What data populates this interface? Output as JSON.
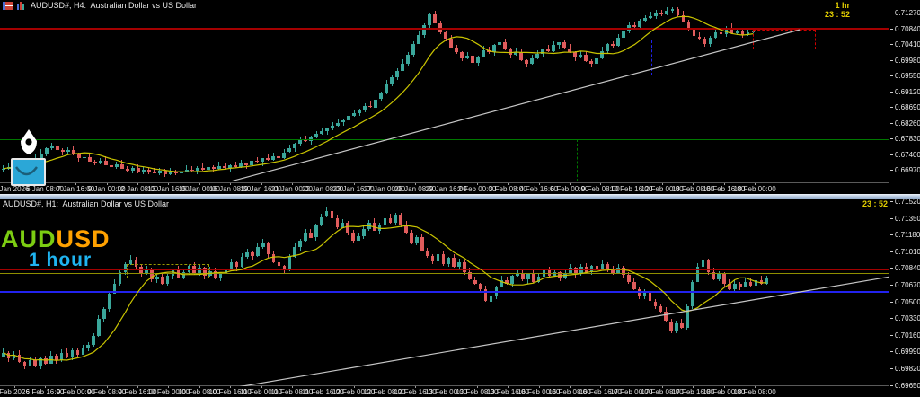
{
  "app": {
    "symbol": "AUDUSD#",
    "splitter_name": "panel splitter"
  },
  "chart_data": [
    {
      "id": "h4",
      "type": "candlestick",
      "title": "AUDUSD#, H4:  Australian Dollar vs US Dollar",
      "clock_label": "1 hr",
      "clock_time": "23 : 52",
      "timeframe": "H4",
      "y_range": {
        "top": 0.71614,
        "bottom": 0.66602
      },
      "price_ticks": [
        {
          "label": "0.71270",
          "value": 0.7127
        },
        {
          "label": "0.70840",
          "value": 0.7084
        },
        {
          "label": "0.70410",
          "value": 0.7041
        },
        {
          "label": "0.69980",
          "value": 0.6998
        },
        {
          "label": "0.69550",
          "value": 0.6955
        },
        {
          "label": "0.69120",
          "value": 0.6912
        },
        {
          "label": "0.68690",
          "value": 0.6869
        },
        {
          "label": "0.68260",
          "value": 0.6826
        },
        {
          "label": "0.67830",
          "value": 0.6783
        },
        {
          "label": "0.67400",
          "value": 0.674
        },
        {
          "label": "0.66970",
          "value": 0.6697
        }
      ],
      "time_ticks": [
        "Jan 2026",
        "6 Jan 08:00",
        "7 Jan 16:00",
        "9 Jan 00:00",
        "12 Jan 08:00",
        "13 Jan 16:00",
        "15 Jan 00:00",
        "16 Jan 08:00",
        "19 Jan 16:00",
        "21 Jan 00:00",
        "22 Jan 08:00",
        "23 Jan 16:00",
        "27 Jan 00:00",
        "28 Jan 08:00",
        "29 Jan 16:00",
        "2 Feb 00:00",
        "3 Feb 08:00",
        "4 Feb 16:00",
        "6 Feb 00:00",
        "9 Feb 08:00",
        "10 Feb 16:00",
        "12 Feb 00:00",
        "13 Feb 08:00",
        "16 Feb 16:00",
        "18 Feb 00:00"
      ],
      "closes": [
        0.67,
        0.6705,
        0.6698,
        0.6712,
        0.672,
        0.6715,
        0.673,
        0.6742,
        0.6755,
        0.6762,
        0.6752,
        0.6745,
        0.675,
        0.6738,
        0.6728,
        0.6732,
        0.672,
        0.6717,
        0.6722,
        0.671,
        0.6705,
        0.6712,
        0.67,
        0.6695,
        0.6702,
        0.669,
        0.6698,
        0.6692,
        0.6688,
        0.6694,
        0.6685,
        0.669,
        0.6686,
        0.6692,
        0.6698,
        0.6694,
        0.6703,
        0.6697,
        0.6705,
        0.67,
        0.6708,
        0.6702,
        0.671,
        0.6705,
        0.6715,
        0.671,
        0.6722,
        0.6718,
        0.6728,
        0.6725,
        0.6735,
        0.673,
        0.6745,
        0.6755,
        0.6768,
        0.678,
        0.6775,
        0.6788,
        0.6795,
        0.6802,
        0.681,
        0.6818,
        0.6826,
        0.6832,
        0.6845,
        0.6852,
        0.686,
        0.6872,
        0.6868,
        0.689,
        0.6905,
        0.6932,
        0.695,
        0.6968,
        0.6988,
        0.7012,
        0.7042,
        0.7065,
        0.7092,
        0.7122,
        0.7098,
        0.7072,
        0.7055,
        0.7032,
        0.7018,
        0.7002,
        0.7008,
        0.699,
        0.7005,
        0.7025,
        0.7018,
        0.7038,
        0.7046,
        0.7028,
        0.7012,
        0.702,
        0.6998,
        0.6988,
        0.7002,
        0.7015,
        0.7028,
        0.7022,
        0.7038,
        0.7045,
        0.703,
        0.7018,
        0.7005,
        0.7012,
        0.6995,
        0.6986,
        0.7002,
        0.7022,
        0.704,
        0.7035,
        0.7058,
        0.7075,
        0.7092,
        0.7088,
        0.7105,
        0.7112,
        0.7118,
        0.7128,
        0.7122,
        0.7132,
        0.7136,
        0.712,
        0.7102,
        0.7085,
        0.7062,
        0.7055,
        0.704,
        0.7058,
        0.7072,
        0.7068,
        0.7086,
        0.707,
        0.7078,
        0.7066,
        0.7074,
        0.7077
      ],
      "levels": [
        {
          "name": "resistance-line",
          "price": 0.7082,
          "color": "#a40000",
          "style": "solid",
          "thick": 2
        },
        {
          "name": "upper-blue-dashed-line",
          "price": 0.7052,
          "color": "#2222ee",
          "style": "dashed",
          "thick": 1
        },
        {
          "name": "lower-blue-dashed-line",
          "price": 0.6956,
          "color": "#2222ee",
          "style": "dashed",
          "thick": 1
        },
        {
          "name": "support-line",
          "price": 0.678,
          "color": "#007800",
          "style": "solid",
          "thick": 1
        }
      ],
      "vlines": [
        {
          "name": "session-vline",
          "x": 0.648,
          "p1": 0.678,
          "p2": 0.6664,
          "color": "#007800"
        },
        {
          "name": "zone-left-edge",
          "x": 0.732,
          "p1": 0.7052,
          "p2": 0.6956,
          "color": "#2222ee"
        }
      ],
      "zones": [
        {
          "name": "sell-zone-rect",
          "x1": 0.846,
          "x2": 0.917,
          "p1": 0.708,
          "p2": 0.7027,
          "color": "#cc0000"
        }
      ],
      "trendline": {
        "x1": 0.261,
        "p1": 0.6666,
        "x2": 0.899,
        "p2": 0.708
      }
    },
    {
      "id": "h1",
      "type": "candlestick",
      "title": "AUDUSD#, H1:  Australian Dollar vs US Dollar",
      "clock_label": "",
      "clock_time": "23 : 52",
      "timeframe": "H1",
      "watermark": {
        "symbol_a": "AUD",
        "symbol_b": "USD",
        "timeframe": "1 hour"
      },
      "y_range": {
        "top": 0.71547,
        "bottom": 0.69637
      },
      "price_ticks": [
        {
          "label": "0.71520",
          "value": 0.7152
        },
        {
          "label": "0.71350",
          "value": 0.7135
        },
        {
          "label": "0.71180",
          "value": 0.7118
        },
        {
          "label": "0.71010",
          "value": 0.7101
        },
        {
          "label": "0.70840",
          "value": 0.7084
        },
        {
          "label": "0.70670",
          "value": 0.7067
        },
        {
          "label": "0.70500",
          "value": 0.705
        },
        {
          "label": "0.70330",
          "value": 0.7033
        },
        {
          "label": "0.70160",
          "value": 0.7016
        },
        {
          "label": "0.69990",
          "value": 0.6999
        },
        {
          "label": "0.69820",
          "value": 0.6982
        },
        {
          "label": "0.69650",
          "value": 0.6965
        }
      ],
      "time_ticks": [
        "Feb 2026",
        "6 Feb 16:00",
        "9 Feb 00:00",
        "9 Feb 08:00",
        "9 Feb 16:00",
        "10 Feb 00:00",
        "10 Feb 08:00",
        "10 Feb 16:00",
        "11 Feb 00:00",
        "11 Feb 08:00",
        "11 Feb 16:00",
        "12 Feb 00:00",
        "12 Feb 08:00",
        "12 Feb 16:00",
        "13 Feb 00:00",
        "13 Feb 08:00",
        "13 Feb 16:00",
        "16 Feb 00:00",
        "16 Feb 08:00",
        "16 Feb 16:00",
        "17 Feb 00:00",
        "17 Feb 08:00",
        "17 Feb 16:00",
        "18 Feb 00:00",
        "18 Feb 08:00"
      ],
      "closes": [
        0.6998,
        0.6992,
        0.6996,
        0.6988,
        0.6985,
        0.699,
        0.6984,
        0.6992,
        0.6987,
        0.6995,
        0.699,
        0.6998,
        0.6993,
        0.7,
        0.6996,
        0.7002,
        0.7006,
        0.7015,
        0.7032,
        0.7042,
        0.7058,
        0.7068,
        0.708,
        0.7088,
        0.7093,
        0.7085,
        0.7078,
        0.7082,
        0.7072,
        0.7075,
        0.7068,
        0.7076,
        0.7082,
        0.7074,
        0.708,
        0.7086,
        0.7078,
        0.7084,
        0.7076,
        0.7081,
        0.7074,
        0.7079,
        0.7083,
        0.709,
        0.7085,
        0.7095,
        0.71,
        0.7096,
        0.7105,
        0.711,
        0.7098,
        0.709,
        0.7086,
        0.7082,
        0.7095,
        0.7105,
        0.7112,
        0.712,
        0.7115,
        0.7128,
        0.7136,
        0.7142,
        0.7135,
        0.7125,
        0.713,
        0.712,
        0.7112,
        0.7116,
        0.7124,
        0.713,
        0.7122,
        0.7128,
        0.7135,
        0.713,
        0.7138,
        0.7128,
        0.712,
        0.711,
        0.7115,
        0.7102,
        0.7096,
        0.7091,
        0.7098,
        0.7088,
        0.7094,
        0.7085,
        0.709,
        0.708,
        0.7072,
        0.7068,
        0.7062,
        0.705,
        0.7056,
        0.7065,
        0.7072,
        0.7068,
        0.7076,
        0.7079,
        0.7072,
        0.7078,
        0.707,
        0.7075,
        0.7082,
        0.7076,
        0.708,
        0.7074,
        0.7079,
        0.7084,
        0.7078,
        0.7085,
        0.708,
        0.7086,
        0.7082,
        0.7088,
        0.7083,
        0.7079,
        0.7084,
        0.7077,
        0.707,
        0.7062,
        0.7055,
        0.706,
        0.705,
        0.7045,
        0.704,
        0.703,
        0.702,
        0.7028,
        0.7023,
        0.7045,
        0.707,
        0.7085,
        0.7092,
        0.708,
        0.7072,
        0.7078,
        0.7068,
        0.7062,
        0.7068,
        0.7065,
        0.707,
        0.7066,
        0.7072,
        0.7068,
        0.7073
      ],
      "levels": [
        {
          "name": "resistance-line",
          "price": 0.7083,
          "color": "#a40000",
          "style": "solid",
          "thick": 2
        },
        {
          "name": "olive-level-line",
          "price": 0.7078,
          "color": "#8f8f00",
          "style": "solid",
          "thick": 1
        },
        {
          "name": "blue-support-line",
          "price": 0.706,
          "color": "#2222ee",
          "style": "solid",
          "thick": 2
        }
      ],
      "vlines": [],
      "zones": [
        {
          "name": "consolidation-zone-rect",
          "x1": 0.142,
          "x2": 0.235,
          "p1": 0.7088,
          "p2": 0.7073,
          "color": "#9a9a00"
        }
      ],
      "trendline": {
        "x1": 0.268,
        "p1": 0.6963,
        "x2": 1.0,
        "p2": 0.7075
      }
    }
  ],
  "indicator": {
    "ma_label": "moving average",
    "ma_period": 10
  },
  "colors": {
    "bull": "#3aa79b",
    "bear": "#e05c5c",
    "ma": "#c9c400",
    "trend": "#c6c6c6",
    "clock": "#e3cf00",
    "wm_green": "#7ccd12",
    "wm_orange": "#ffa100",
    "wm_cyan": "#1fb4f0"
  },
  "tools": {
    "pen_tool": "pen nib marker",
    "arc_tool": "arc draw button"
  }
}
